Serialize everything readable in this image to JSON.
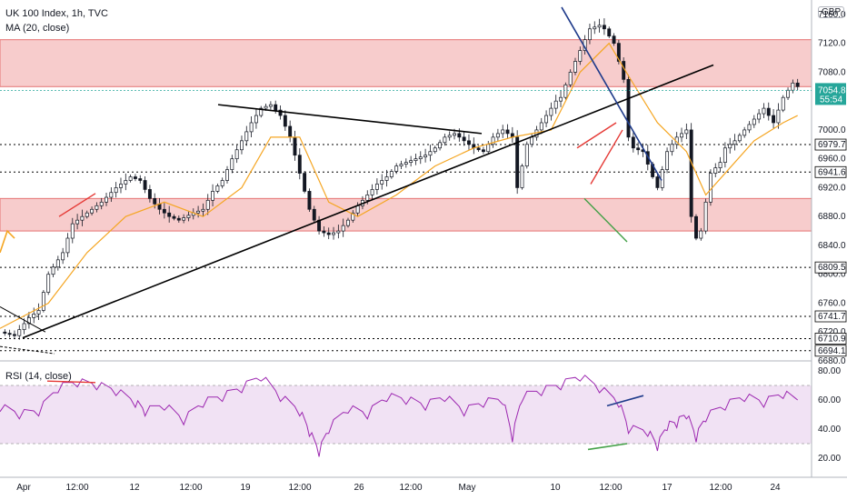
{
  "header": {
    "title": "UK 100 Index, 1h, TVC",
    "indicator": "MA (20, close)",
    "rsi_label": "RSI (14, close)",
    "currency": "GBP"
  },
  "price_axis": {
    "ticks": [
      "7160.0",
      "7120.0",
      "7080.0",
      "7040.0",
      "7000.0",
      "6960.0",
      "6920.0",
      "6880.0",
      "6840.0",
      "6800.0",
      "6760.0",
      "6720.0",
      "6680.0"
    ]
  },
  "rsi_axis": {
    "ticks": [
      "80.00",
      "60.00",
      "40.00",
      "20.00"
    ]
  },
  "time_axis": {
    "ticks": [
      "Apr",
      "12:00",
      "12",
      "12:00",
      "19",
      "12:00",
      "26",
      "12:00",
      "May",
      "10",
      "12:00",
      "17",
      "12:00",
      "24"
    ]
  },
  "current_price": {
    "value": "7054.8",
    "countdown": "55:54",
    "color": "#26a69a"
  },
  "level_tags": [
    {
      "value": "6979.7"
    },
    {
      "value": "6941.6"
    },
    {
      "value": "6809.5"
    },
    {
      "value": "6741.7"
    },
    {
      "value": "6710.9"
    },
    {
      "value": "6694.1"
    }
  ],
  "colors": {
    "zone": "#ef9a9a",
    "ma": "#f5a623",
    "rsi": "#9c27b0",
    "trend": "#000000",
    "blue_line": "#1e3a8a",
    "red_line": "#e53935",
    "green_line": "#43a047",
    "bull": "#26a69a",
    "bear": "#ef5350"
  },
  "chart_data": {
    "type": "candlestick",
    "title": "UK 100 Index, 1h, TVC",
    "x": [
      "Apr",
      "12:00",
      "12",
      "12:00",
      "19",
      "12:00",
      "26",
      "12:00",
      "May",
      "10",
      "12:00",
      "17",
      "12:00",
      "24"
    ],
    "ylim": [
      6680,
      7180
    ],
    "price_path": [
      [
        0,
        6720
      ],
      [
        3,
        6715
      ],
      [
        6,
        6740
      ],
      [
        8,
        6750
      ],
      [
        10,
        6800
      ],
      [
        13,
        6830
      ],
      [
        15,
        6870
      ],
      [
        18,
        6885
      ],
      [
        21,
        6900
      ],
      [
        24,
        6920
      ],
      [
        27,
        6935
      ],
      [
        29,
        6930
      ],
      [
        31,
        6905
      ],
      [
        33,
        6890
      ],
      [
        35,
        6880
      ],
      [
        37,
        6875
      ],
      [
        40,
        6885
      ],
      [
        42,
        6890
      ],
      [
        44,
        6915
      ],
      [
        46,
        6930
      ],
      [
        48,
        6960
      ],
      [
        50,
        6985
      ],
      [
        52,
        7010
      ],
      [
        54,
        7030
      ],
      [
        56,
        7035
      ],
      [
        58,
        7020
      ],
      [
        60,
        6990
      ],
      [
        62,
        6940
      ],
      [
        64,
        6890
      ],
      [
        66,
        6860
      ],
      [
        68,
        6855
      ],
      [
        70,
        6860
      ],
      [
        72,
        6875
      ],
      [
        74,
        6895
      ],
      [
        76,
        6910
      ],
      [
        78,
        6925
      ],
      [
        80,
        6935
      ],
      [
        82,
        6950
      ],
      [
        84,
        6955
      ],
      [
        86,
        6960
      ],
      [
        88,
        6965
      ],
      [
        90,
        6975
      ],
      [
        92,
        6990
      ],
      [
        94,
        6995
      ],
      [
        96,
        6985
      ],
      [
        98,
        6975
      ],
      [
        100,
        6970
      ],
      [
        102,
        6990
      ],
      [
        104,
        7000
      ],
      [
        106,
        6990
      ],
      [
        107,
        6920
      ],
      [
        109,
        6980
      ],
      [
        111,
        7000
      ],
      [
        113,
        7020
      ],
      [
        115,
        7040
      ],
      [
        116,
        7045
      ],
      [
        118,
        7080
      ],
      [
        120,
        7110
      ],
      [
        122,
        7140
      ],
      [
        124,
        7145
      ],
      [
        125,
        7140
      ],
      [
        127,
        7120
      ],
      [
        129,
        7070
      ],
      [
        130,
        6990
      ],
      [
        131,
        6975
      ],
      [
        133,
        6970
      ],
      [
        135,
        6935
      ],
      [
        136,
        6920
      ],
      [
        138,
        6970
      ],
      [
        140,
        6990
      ],
      [
        142,
        7000
      ],
      [
        143,
        6880
      ],
      [
        144,
        6850
      ],
      [
        145,
        6860
      ],
      [
        147,
        6940
      ],
      [
        149,
        6955
      ],
      [
        150,
        6975
      ],
      [
        152,
        6985
      ],
      [
        154,
        7000
      ],
      [
        156,
        7015
      ],
      [
        158,
        7030
      ],
      [
        160,
        7010
      ],
      [
        162,
        7045
      ],
      [
        164,
        7065
      ],
      [
        165,
        7060
      ]
    ],
    "ma_path": [
      [
        0,
        6725
      ],
      [
        10,
        6760
      ],
      [
        18,
        6830
      ],
      [
        26,
        6880
      ],
      [
        34,
        6900
      ],
      [
        42,
        6880
      ],
      [
        50,
        6920
      ],
      [
        56,
        6990
      ],
      [
        62,
        6990
      ],
      [
        68,
        6900
      ],
      [
        74,
        6880
      ],
      [
        82,
        6910
      ],
      [
        90,
        6950
      ],
      [
        98,
        6975
      ],
      [
        106,
        6990
      ],
      [
        114,
        7000
      ],
      [
        120,
        7080
      ],
      [
        126,
        7120
      ],
      [
        130,
        7075
      ],
      [
        136,
        7010
      ],
      [
        142,
        6970
      ],
      [
        146,
        6910
      ],
      [
        150,
        6940
      ],
      [
        156,
        6985
      ],
      [
        162,
        7010
      ],
      [
        165,
        7020
      ]
    ],
    "rsi_values": [
      [
        0,
        55
      ],
      [
        4,
        50
      ],
      [
        8,
        52
      ],
      [
        12,
        68
      ],
      [
        16,
        72
      ],
      [
        20,
        70
      ],
      [
        24,
        66
      ],
      [
        28,
        58
      ],
      [
        30,
        52
      ],
      [
        34,
        56
      ],
      [
        38,
        46
      ],
      [
        42,
        58
      ],
      [
        46,
        62
      ],
      [
        50,
        68
      ],
      [
        54,
        76
      ],
      [
        58,
        62
      ],
      [
        62,
        52
      ],
      [
        64,
        38
      ],
      [
        66,
        24
      ],
      [
        68,
        40
      ],
      [
        72,
        54
      ],
      [
        76,
        50
      ],
      [
        80,
        62
      ],
      [
        84,
        60
      ],
      [
        88,
        56
      ],
      [
        92,
        62
      ],
      [
        96,
        52
      ],
      [
        100,
        58
      ],
      [
        104,
        60
      ],
      [
        106,
        34
      ],
      [
        108,
        62
      ],
      [
        112,
        66
      ],
      [
        116,
        70
      ],
      [
        120,
        76
      ],
      [
        124,
        68
      ],
      [
        128,
        58
      ],
      [
        130,
        40
      ],
      [
        134,
        38
      ],
      [
        136,
        28
      ],
      [
        138,
        42
      ],
      [
        140,
        44
      ],
      [
        142,
        50
      ],
      [
        144,
        34
      ],
      [
        146,
        48
      ],
      [
        150,
        56
      ],
      [
        154,
        62
      ],
      [
        158,
        58
      ],
      [
        162,
        64
      ],
      [
        165,
        60
      ]
    ],
    "zones": [
      [
        7060,
        7125
      ],
      [
        6860,
        6905
      ]
    ],
    "levels": [
      6979.7,
      6941.6,
      6809.5,
      6741.7,
      6710.9,
      6694.1
    ],
    "rsi_ylim": [
      10,
      85
    ],
    "rsi_band": [
      30,
      70
    ],
    "legend": "top-left",
    "grid": false
  }
}
